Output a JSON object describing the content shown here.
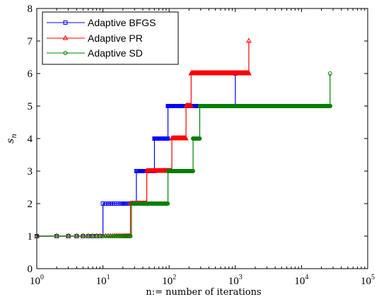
{
  "chart_data": {
    "type": "line",
    "subtype": "step",
    "title": "",
    "xlabel": "n:= number of iterations",
    "ylabel": "s",
    "ylabel_subscript": "n",
    "xscale": "log",
    "xlim": [
      1,
      100000
    ],
    "ylim": [
      0,
      8
    ],
    "xticks": [
      {
        "base": "10",
        "exp": "0"
      },
      {
        "base": "10",
        "exp": "1"
      },
      {
        "base": "10",
        "exp": "2"
      },
      {
        "base": "10",
        "exp": "3"
      },
      {
        "base": "10",
        "exp": "4"
      },
      {
        "base": "10",
        "exp": "5"
      }
    ],
    "yticks": [
      "0",
      "1",
      "2",
      "3",
      "4",
      "5",
      "6",
      "7",
      "8"
    ],
    "grid": false,
    "legend_position": "top-left",
    "series": [
      {
        "name": "Adaptive BFGS",
        "color": "#0000ff",
        "marker": "square",
        "n_end": 1000,
        "steps": [
          {
            "start": 1,
            "value": 1
          },
          {
            "start": 10,
            "value": 2
          },
          {
            "start": 32,
            "value": 3
          },
          {
            "start": 60,
            "value": 4
          },
          {
            "start": 96,
            "value": 5
          }
        ],
        "final_point": {
          "x": 1000,
          "y": 6
        }
      },
      {
        "name": "Adaptive PR",
        "color": "#ff0000",
        "marker": "triangle",
        "n_end": 1600,
        "steps": [
          {
            "start": 1,
            "value": 1
          },
          {
            "start": 26,
            "value": 2
          },
          {
            "start": 46,
            "value": 3
          },
          {
            "start": 110,
            "value": 4
          },
          {
            "start": 180,
            "value": 5
          },
          {
            "start": 215,
            "value": 6
          }
        ],
        "final_point": {
          "x": 1600,
          "y": 7
        }
      },
      {
        "name": "Adaptive SD",
        "color": "#008000",
        "marker": "circle",
        "n_end": 27000,
        "steps": [
          {
            "start": 1,
            "value": 1
          },
          {
            "start": 27,
            "value": 2
          },
          {
            "start": 96,
            "value": 3
          },
          {
            "start": 230,
            "value": 4
          },
          {
            "start": 290,
            "value": 5
          }
        ],
        "final_point": {
          "x": 27000,
          "y": 6
        }
      }
    ]
  }
}
